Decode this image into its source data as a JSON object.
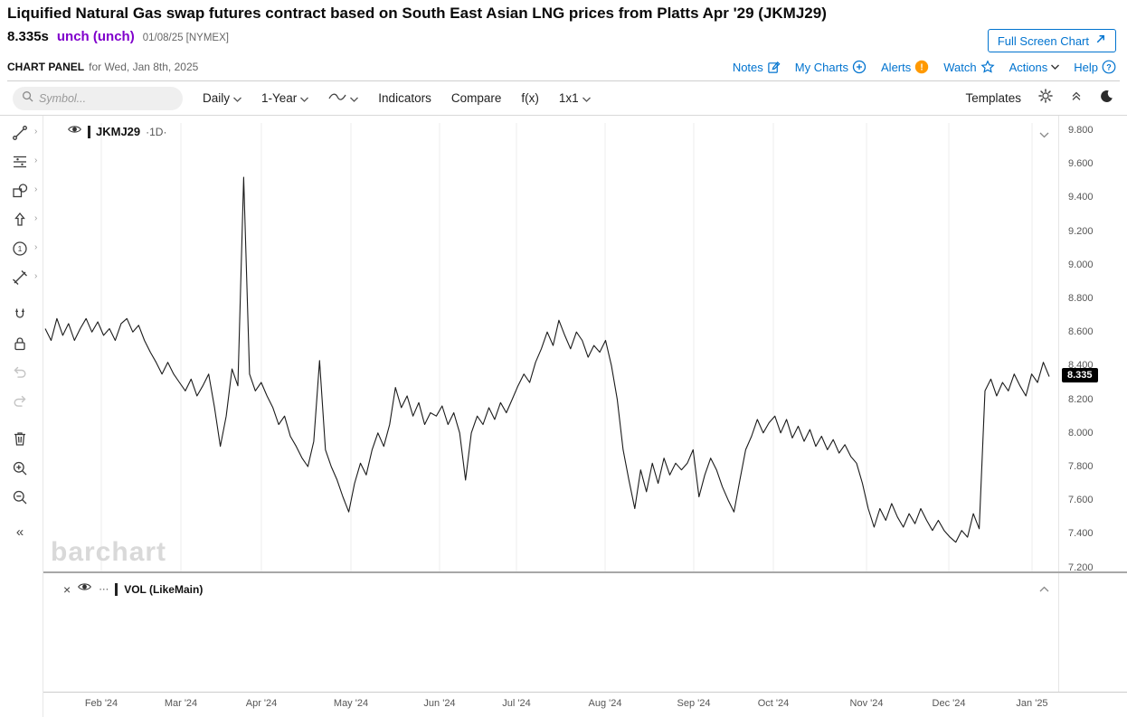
{
  "header": {
    "title": "Liquified Natural Gas swap futures contract based on South East Asian LNG prices from Platts Apr '29 (JKMJ29)",
    "price": "8.335s",
    "change": "unch (unch)",
    "date_exchange": "01/08/25 [NYMEX]",
    "full_screen_button": "Full Screen Chart",
    "panel_label": "CHART PANEL",
    "panel_date": "for Wed, Jan 8th, 2025",
    "links": {
      "notes": "Notes",
      "my_charts": "My Charts",
      "alerts": "Alerts",
      "watch": "Watch",
      "actions": "Actions",
      "help": "Help"
    }
  },
  "toolbar": {
    "symbol_placeholder": "Symbol...",
    "period": "Daily",
    "range": "1-Year",
    "indicators": "Indicators",
    "compare": "Compare",
    "fx": "f(x)",
    "layout": "1x1",
    "templates": "Templates"
  },
  "chart": {
    "legend_symbol": "JKMJ29",
    "legend_timeframe": "·1D·",
    "price_label": "8.335",
    "watermark": "barchart",
    "volume_legend": "VOL (LikeMain)"
  },
  "colors": {
    "link_blue": "#0073cf",
    "change_purple": "#8000cc",
    "alert_orange": "#ff9900",
    "line_black": "#1b1b1b",
    "grid_gray": "#ececec"
  },
  "chart_data": {
    "type": "line",
    "title": "Liquified Natural Gas swap futures contract based on South East Asian LNG prices from Platts Apr '29 (JKMJ29)",
    "series_name": "JKMJ29 1D close",
    "x_ticks": [
      "Feb '24",
      "Mar '24",
      "Apr '24",
      "May '24",
      "Jun '24",
      "Jul '24",
      "Aug '24",
      "Sep '24",
      "Oct '24",
      "Nov '24",
      "Dec '24",
      "Jan '25"
    ],
    "y_ticks": [
      "9.800",
      "9.600",
      "9.400",
      "9.200",
      "9.000",
      "8.800",
      "8.600",
      "8.400",
      "8.200",
      "8.000",
      "7.800",
      "7.600",
      "7.400",
      "7.200"
    ],
    "ylim": [
      7.2,
      9.8
    ],
    "last_price": 8.335,
    "legend_position": "top-left",
    "grid": "vertical-only",
    "values": [
      8.62,
      8.55,
      8.68,
      8.58,
      8.65,
      8.55,
      8.62,
      8.68,
      8.6,
      8.66,
      8.58,
      8.62,
      8.55,
      8.65,
      8.68,
      8.6,
      8.64,
      8.55,
      8.48,
      8.42,
      8.35,
      8.42,
      8.35,
      8.3,
      8.25,
      8.32,
      8.22,
      8.28,
      8.35,
      8.15,
      7.92,
      8.1,
      8.38,
      8.28,
      9.52,
      8.35,
      8.25,
      8.3,
      8.22,
      8.15,
      8.05,
      8.1,
      7.98,
      7.92,
      7.85,
      7.8,
      7.95,
      8.43,
      7.9,
      7.8,
      7.72,
      7.62,
      7.53,
      7.7,
      7.82,
      7.75,
      7.9,
      8.0,
      7.92,
      8.05,
      8.27,
      8.15,
      8.22,
      8.1,
      8.18,
      8.05,
      8.12,
      8.1,
      8.16,
      8.05,
      8.12,
      8.0,
      7.72,
      8.0,
      8.1,
      8.05,
      8.15,
      8.08,
      8.18,
      8.12,
      8.2,
      8.28,
      8.35,
      8.3,
      8.42,
      8.5,
      8.6,
      8.52,
      8.67,
      8.58,
      8.5,
      8.6,
      8.55,
      8.45,
      8.52,
      8.48,
      8.55,
      8.4,
      8.2,
      7.9,
      7.72,
      7.55,
      7.78,
      7.65,
      7.82,
      7.7,
      7.85,
      7.75,
      7.82,
      7.78,
      7.82,
      7.9,
      7.62,
      7.75,
      7.85,
      7.78,
      7.68,
      7.6,
      7.53,
      7.72,
      7.9,
      7.98,
      8.08,
      8.0,
      8.06,
      8.1,
      8.0,
      8.08,
      7.97,
      8.04,
      7.95,
      8.02,
      7.92,
      7.98,
      7.9,
      7.96,
      7.88,
      7.93,
      7.86,
      7.82,
      7.7,
      7.55,
      7.44,
      7.55,
      7.48,
      7.58,
      7.5,
      7.44,
      7.52,
      7.46,
      7.55,
      7.48,
      7.42,
      7.48,
      7.42,
      7.38,
      7.35,
      7.42,
      7.38,
      7.52,
      7.43,
      8.25,
      8.32,
      8.22,
      8.3,
      8.25,
      8.35,
      8.28,
      8.22,
      8.35,
      8.3,
      8.42,
      8.335
    ]
  }
}
